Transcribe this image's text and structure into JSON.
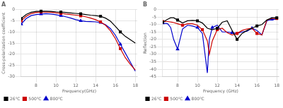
{
  "chart_data": [
    {
      "type": "line",
      "title": "A",
      "x_label": "Frequency(GHz)",
      "y_label": "Cross-polarization coefficient",
      "xlim": [
        6.5,
        18.2
      ],
      "ylim": [
        -30,
        0
      ],
      "xticks": [
        8,
        10,
        12,
        14,
        16,
        18
      ],
      "yticks": [
        0,
        -5,
        -10,
        -15,
        -20,
        -25,
        -30
      ],
      "grid": true,
      "legend": "lower left",
      "series": [
        {
          "name": "26℃",
          "color": "#000000",
          "marker": "square",
          "x": [
            6.5,
            7.0,
            7.5,
            8.0,
            8.5,
            9.0,
            9.5,
            10.0,
            10.5,
            11.0,
            11.5,
            12.0,
            12.5,
            13.0,
            13.5,
            14.0,
            14.5,
            15.0,
            15.5,
            16.0,
            16.5,
            17.0,
            17.5,
            18.0
          ],
          "values": [
            -4.0,
            -2.2,
            -1.2,
            -0.8,
            -0.7,
            -0.7,
            -0.8,
            -1.0,
            -1.1,
            -1.3,
            -1.5,
            -1.7,
            -1.9,
            -2.2,
            -2.5,
            -2.7,
            -3.0,
            -3.8,
            -5.2,
            -7.5,
            -10.0,
            -12.0,
            -13.5,
            -15.0
          ]
        },
        {
          "name": "500℃",
          "color": "#cc0000",
          "marker": "square",
          "x": [
            6.5,
            7.0,
            7.5,
            8.0,
            8.5,
            9.0,
            9.5,
            10.0,
            10.5,
            11.0,
            11.5,
            12.0,
            12.5,
            13.0,
            13.5,
            14.0,
            14.5,
            15.0,
            15.5,
            16.0,
            16.5,
            17.0,
            17.5,
            18.0
          ],
          "values": [
            -5.0,
            -3.0,
            -1.8,
            -1.3,
            -1.1,
            -1.1,
            -1.2,
            -1.4,
            -1.7,
            -2.0,
            -2.2,
            -2.5,
            -2.8,
            -3.2,
            -3.8,
            -4.5,
            -5.5,
            -7.0,
            -9.5,
            -13.0,
            -17.5,
            -21.5,
            -24.5,
            -27.0
          ]
        },
        {
          "name": "800℃",
          "color": "#0000cc",
          "marker": "triangle",
          "x": [
            6.5,
            7.0,
            7.5,
            8.0,
            8.5,
            9.0,
            9.5,
            10.0,
            10.5,
            11.0,
            11.5,
            12.0,
            12.5,
            13.0,
            13.5,
            14.0,
            14.5,
            15.0,
            15.5,
            16.0,
            16.5,
            17.0,
            17.5,
            18.0
          ],
          "values": [
            -6.5,
            -4.0,
            -2.7,
            -2.2,
            -2.0,
            -1.8,
            -2.0,
            -2.3,
            -2.7,
            -3.2,
            -3.8,
            -4.5,
            -5.0,
            -5.3,
            -5.4,
            -5.5,
            -5.8,
            -6.8,
            -8.5,
            -11.5,
            -15.5,
            -19.5,
            -23.5,
            -27.5
          ]
        }
      ]
    },
    {
      "type": "line",
      "title": "B",
      "x_label": "Frequency (GHz)",
      "y_label": "Reflection",
      "xlim": [
        6.5,
        18.2
      ],
      "ylim": [
        -45,
        0
      ],
      "xticks": [
        8,
        10,
        12,
        14,
        16,
        18
      ],
      "yticks": [
        0,
        -5,
        -10,
        -15,
        -20,
        -25,
        -30,
        -35,
        -40,
        -45
      ],
      "grid": true,
      "legend": "lower left",
      "series": [
        {
          "name": "26℃",
          "color": "#000000",
          "marker": "square",
          "x": [
            6.5,
            7.0,
            7.3,
            7.6,
            8.0,
            8.5,
            9.0,
            9.5,
            10.0,
            10.5,
            11.0,
            11.5,
            12.0,
            12.5,
            13.0,
            13.5,
            14.0,
            14.5,
            15.0,
            15.5,
            16.0,
            16.5,
            17.0,
            17.5,
            18.0
          ],
          "values": [
            -8.5,
            -6.5,
            -5.5,
            -5.5,
            -7.0,
            -9.0,
            -7.5,
            -7.2,
            -7.5,
            -9.0,
            -12.5,
            -13.5,
            -12.5,
            -8.5,
            -7.5,
            -14.0,
            -20.0,
            -16.0,
            -14.0,
            -12.5,
            -11.0,
            -10.0,
            -7.0,
            -5.5,
            -5.5
          ]
        },
        {
          "name": "500℃",
          "color": "#cc0000",
          "marker": "square",
          "x": [
            6.5,
            7.0,
            7.5,
            8.0,
            8.5,
            9.0,
            9.5,
            10.0,
            10.5,
            11.0,
            11.2,
            11.5,
            12.0,
            12.5,
            13.0,
            13.5,
            14.0,
            14.5,
            15.0,
            15.5,
            16.0,
            16.5,
            17.0,
            17.5,
            18.0
          ],
          "values": [
            -8.0,
            -8.0,
            -8.5,
            -9.5,
            -10.5,
            -9.5,
            -9.5,
            -10.5,
            -13.5,
            -21.0,
            -30.0,
            -21.0,
            -13.5,
            -12.5,
            -15.5,
            -17.0,
            -16.0,
            -14.0,
            -13.0,
            -12.5,
            -16.0,
            -17.0,
            -7.0,
            -6.0,
            -6.0
          ]
        },
        {
          "name": "800℃",
          "color": "#0000cc",
          "marker": "triangle",
          "x": [
            6.5,
            7.0,
            7.3,
            7.6,
            8.0,
            8.5,
            9.0,
            9.5,
            10.0,
            10.5,
            11.0,
            11.2,
            11.5,
            12.0,
            12.5,
            13.0,
            13.5,
            14.0,
            14.5,
            15.0,
            15.5,
            16.0,
            16.5,
            17.0,
            17.5,
            18.0
          ],
          "values": [
            -9.0,
            -9.5,
            -12.0,
            -20.0,
            -26.5,
            -13.0,
            -10.5,
            -11.0,
            -12.0,
            -16.0,
            -42.5,
            -20.0,
            -12.0,
            -10.5,
            -15.0,
            -15.0,
            -15.5,
            -16.0,
            -15.0,
            -14.5,
            -12.5,
            -14.0,
            -17.0,
            -7.5,
            -6.5,
            -6.5
          ]
        }
      ]
    }
  ]
}
